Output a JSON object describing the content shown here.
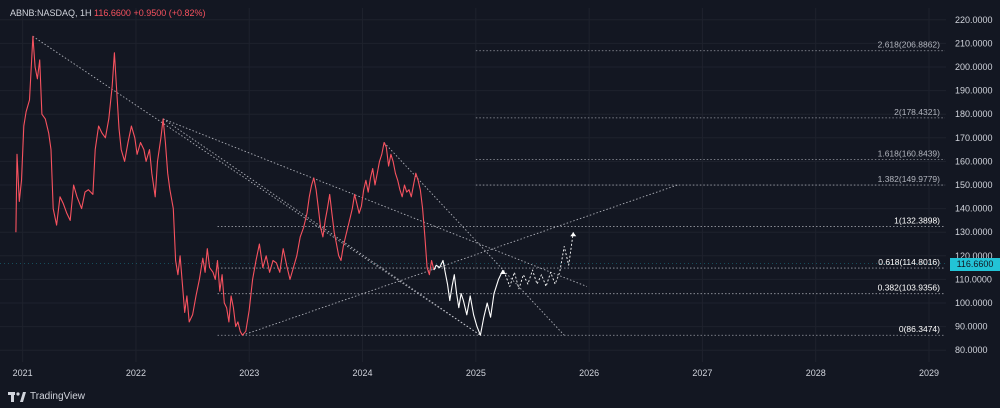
{
  "header": {
    "symbol": "ABNB:NASDAQ, 1H",
    "price": "116.6600",
    "change": "+0.9500 (+0.82%)"
  },
  "brand": {
    "name": "TradingView"
  },
  "colors": {
    "background": "#131722",
    "price_line": "#f7525f",
    "projection": "#ffffff",
    "guide": "#c7c9d1",
    "price_tag": "#22c3d6"
  },
  "chart_data": {
    "type": "line",
    "ylim": [
      75,
      225
    ],
    "xlim": [
      2020.8,
      2029.15
    ],
    "y_ticks": [
      "80.0000",
      "90.0000",
      "100.0000",
      "110.0000",
      "120.0000",
      "130.0000",
      "140.0000",
      "150.0000",
      "160.0000",
      "170.0000",
      "180.0000",
      "190.0000",
      "200.0000",
      "210.0000",
      "220.0000"
    ],
    "y_tick_values": [
      80,
      90,
      100,
      110,
      120,
      130,
      140,
      150,
      160,
      170,
      180,
      190,
      200,
      210,
      220
    ],
    "x_ticks": [
      "2021",
      "2022",
      "2023",
      "2024",
      "2025",
      "2026",
      "2027",
      "2028",
      "2029"
    ],
    "x_tick_values": [
      2021,
      2022,
      2023,
      2024,
      2025,
      2026,
      2027,
      2028,
      2029
    ],
    "current_price": "116.6600",
    "current_price_value": 116.66,
    "series": [
      {
        "values": [
          [
            2020.94,
            130
          ],
          [
            2020.95,
            163
          ],
          [
            2020.97,
            143
          ],
          [
            2020.99,
            152
          ],
          [
            2021.01,
            175
          ],
          [
            2021.03,
            181
          ],
          [
            2021.06,
            186
          ],
          [
            2021.09,
            213
          ],
          [
            2021.11,
            200
          ],
          [
            2021.13,
            195
          ],
          [
            2021.15,
            203
          ],
          [
            2021.17,
            180
          ],
          [
            2021.2,
            178
          ],
          [
            2021.23,
            172
          ],
          [
            2021.25,
            165
          ],
          [
            2021.27,
            140
          ],
          [
            2021.3,
            133
          ],
          [
            2021.33,
            145
          ],
          [
            2021.36,
            142
          ],
          [
            2021.39,
            138
          ],
          [
            2021.42,
            135
          ],
          [
            2021.45,
            150
          ],
          [
            2021.48,
            145
          ],
          [
            2021.52,
            140
          ],
          [
            2021.55,
            147
          ],
          [
            2021.58,
            148
          ],
          [
            2021.62,
            146
          ],
          [
            2021.64,
            165
          ],
          [
            2021.67,
            175
          ],
          [
            2021.7,
            172
          ],
          [
            2021.73,
            170
          ],
          [
            2021.76,
            178
          ],
          [
            2021.79,
            192
          ],
          [
            2021.81,
            206
          ],
          [
            2021.83,
            190
          ],
          [
            2021.85,
            174
          ],
          [
            2021.87,
            165
          ],
          [
            2021.9,
            160
          ],
          [
            2021.93,
            168
          ],
          [
            2021.96,
            175
          ],
          [
            2021.99,
            170
          ],
          [
            2022.01,
            163
          ],
          [
            2022.04,
            168
          ],
          [
            2022.07,
            165
          ],
          [
            2022.09,
            160
          ],
          [
            2022.12,
            165
          ],
          [
            2022.14,
            155
          ],
          [
            2022.17,
            145
          ],
          [
            2022.19,
            160
          ],
          [
            2022.22,
            170
          ],
          [
            2022.24,
            178
          ],
          [
            2022.26,
            168
          ],
          [
            2022.28,
            155
          ],
          [
            2022.3,
            148
          ],
          [
            2022.33,
            140
          ],
          [
            2022.35,
            118
          ],
          [
            2022.37,
            112
          ],
          [
            2022.39,
            120
          ],
          [
            2022.41,
            108
          ],
          [
            2022.43,
            96
          ],
          [
            2022.45,
            103
          ],
          [
            2022.47,
            92
          ],
          [
            2022.5,
            95
          ],
          [
            2022.53,
            103
          ],
          [
            2022.56,
            110
          ],
          [
            2022.59,
            119
          ],
          [
            2022.61,
            113
          ],
          [
            2022.63,
            123
          ],
          [
            2022.65,
            115
          ],
          [
            2022.68,
            113
          ],
          [
            2022.7,
            110
          ],
          [
            2022.72,
            118
          ],
          [
            2022.74,
            105
          ],
          [
            2022.76,
            112
          ],
          [
            2022.78,
            100
          ],
          [
            2022.8,
            98
          ],
          [
            2022.82,
            92
          ],
          [
            2022.84,
            103
          ],
          [
            2022.86,
            98
          ],
          [
            2022.88,
            90
          ],
          [
            2022.9,
            92
          ],
          [
            2022.92,
            88
          ],
          [
            2022.94,
            86.35
          ],
          [
            2022.97,
            88
          ],
          [
            2023.0,
            97
          ],
          [
            2023.03,
            110
          ],
          [
            2023.06,
            118
          ],
          [
            2023.09,
            125
          ],
          [
            2023.12,
            115
          ],
          [
            2023.15,
            120
          ],
          [
            2023.18,
            113
          ],
          [
            2023.21,
            118
          ],
          [
            2023.24,
            117
          ],
          [
            2023.27,
            113
          ],
          [
            2023.3,
            123
          ],
          [
            2023.33,
            116
          ],
          [
            2023.36,
            110
          ],
          [
            2023.39,
            115
          ],
          [
            2023.42,
            120
          ],
          [
            2023.45,
            128
          ],
          [
            2023.48,
            132
          ],
          [
            2023.51,
            138
          ],
          [
            2023.53,
            145
          ],
          [
            2023.55,
            150
          ],
          [
            2023.57,
            153
          ],
          [
            2023.59,
            148
          ],
          [
            2023.61,
            140
          ],
          [
            2023.63,
            132
          ],
          [
            2023.65,
            128
          ],
          [
            2023.67,
            135
          ],
          [
            2023.69,
            140
          ],
          [
            2023.71,
            146
          ],
          [
            2023.73,
            138
          ],
          [
            2023.75,
            130
          ],
          [
            2023.77,
            125
          ],
          [
            2023.79,
            120
          ],
          [
            2023.81,
            118
          ],
          [
            2023.83,
            124
          ],
          [
            2023.85,
            128
          ],
          [
            2023.87,
            132
          ],
          [
            2023.89,
            136
          ],
          [
            2023.91,
            140
          ],
          [
            2023.93,
            146
          ],
          [
            2023.95,
            142
          ],
          [
            2023.97,
            138
          ],
          [
            2023.99,
            141
          ],
          [
            2024.01,
            148
          ],
          [
            2024.03,
            152
          ],
          [
            2024.05,
            147
          ],
          [
            2024.07,
            153
          ],
          [
            2024.09,
            157
          ],
          [
            2024.11,
            150
          ],
          [
            2024.13,
            155
          ],
          [
            2024.15,
            160
          ],
          [
            2024.17,
            163
          ],
          [
            2024.19,
            168
          ],
          [
            2024.21,
            166
          ],
          [
            2024.23,
            158
          ],
          [
            2024.25,
            163
          ],
          [
            2024.27,
            160
          ],
          [
            2024.29,
            155
          ],
          [
            2024.31,
            152
          ],
          [
            2024.33,
            148
          ],
          [
            2024.35,
            145
          ],
          [
            2024.37,
            150
          ],
          [
            2024.39,
            147
          ],
          [
            2024.41,
            148
          ],
          [
            2024.43,
            145
          ],
          [
            2024.45,
            150
          ],
          [
            2024.47,
            155
          ],
          [
            2024.49,
            152
          ],
          [
            2024.51,
            148
          ],
          [
            2024.53,
            140
          ],
          [
            2024.55,
            128
          ],
          [
            2024.57,
            115
          ],
          [
            2024.59,
            112
          ],
          [
            2024.61,
            118
          ],
          [
            2024.63,
            114
          ]
        ]
      },
      {
        "values": [
          [
            2024.63,
            114
          ],
          [
            2024.65,
            116
          ],
          [
            2024.68,
            115
          ],
          [
            2024.71,
            118
          ],
          [
            2024.73,
            113
          ],
          [
            2024.75,
            108
          ],
          [
            2024.77,
            101
          ],
          [
            2024.79,
            107
          ],
          [
            2024.81,
            112
          ],
          [
            2024.83,
            104
          ],
          [
            2024.85,
            98
          ],
          [
            2024.87,
            104
          ],
          [
            2024.89,
            101
          ],
          [
            2024.92,
            95
          ],
          [
            2024.95,
            103
          ],
          [
            2024.98,
            95
          ],
          [
            2025.01,
            90
          ],
          [
            2025.04,
            86.35
          ],
          [
            2025.07,
            94
          ],
          [
            2025.1,
            100
          ],
          [
            2025.13,
            94
          ],
          [
            2025.16,
            104
          ],
          [
            2025.2,
            110
          ],
          [
            2025.24,
            114
          ]
        ]
      },
      {
        "values": [
          [
            2025.26,
            112
          ],
          [
            2025.3,
            107
          ],
          [
            2025.34,
            113
          ],
          [
            2025.38,
            106
          ],
          [
            2025.42,
            112
          ],
          [
            2025.46,
            108
          ],
          [
            2025.5,
            114
          ],
          [
            2025.54,
            108
          ],
          [
            2025.58,
            112
          ],
          [
            2025.62,
            107
          ],
          [
            2025.66,
            113
          ],
          [
            2025.7,
            108
          ],
          [
            2025.74,
            113
          ],
          [
            2025.78,
            124
          ],
          [
            2025.82,
            116
          ],
          [
            2025.86,
            130
          ]
        ]
      }
    ],
    "lines": [
      [
        [
          2021.09,
          213
        ],
        [
          2025.04,
          86.35
        ]
      ],
      [
        [
          2022.24,
          178
        ],
        [
          2025.04,
          86.35
        ]
      ],
      [
        [
          2022.24,
          178
        ],
        [
          2025.98,
          107
        ]
      ],
      [
        [
          2024.19,
          168
        ],
        [
          2025.78,
          86.35
        ]
      ],
      [
        [
          2022.94,
          86.35
        ],
        [
          2026.78,
          150
        ]
      ]
    ],
    "fib_levels": [
      {
        "label": "2.618(206.8862)",
        "value": 206.8862,
        "x_start": 2025.0,
        "bold": false
      },
      {
        "label": "2(178.4321)",
        "value": 178.4321,
        "x_start": 2025.0,
        "bold": false
      },
      {
        "label": "1.618(160.8439)",
        "value": 160.8439,
        "x_start": 2025.0,
        "bold": false
      },
      {
        "label": "1.382(149.9779)",
        "value": 149.9779,
        "x_start": 2025.0,
        "bold": false
      },
      {
        "label": "1(132.3898)",
        "value": 132.3898,
        "x_start": 2022.72,
        "bold": true
      },
      {
        "label": "0.618(114.8016)",
        "value": 114.8016,
        "x_start": 2022.72,
        "bold": true
      },
      {
        "label": "0.382(103.9356)",
        "value": 103.9356,
        "x_start": 2022.72,
        "bold": true
      },
      {
        "label": "0(86.3474)",
        "value": 86.3474,
        "x_start": 2022.72,
        "bold": true
      }
    ]
  }
}
